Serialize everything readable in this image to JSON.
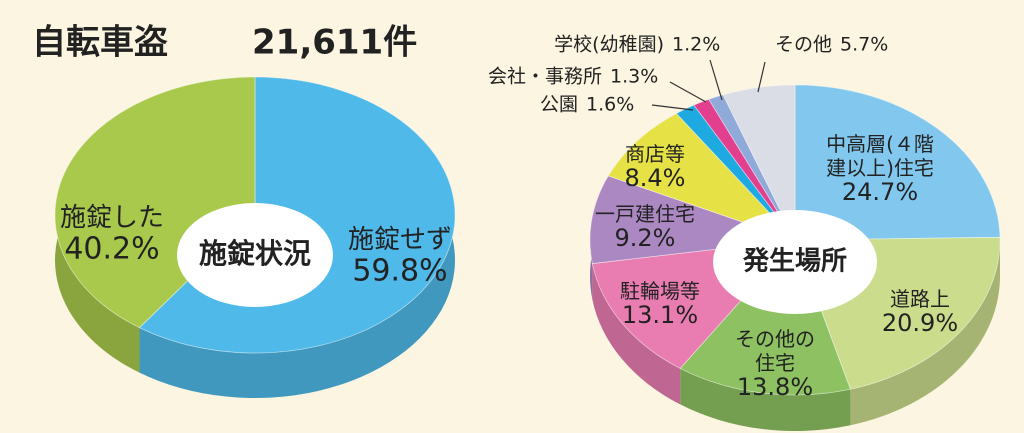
{
  "title": "自転車盗",
  "total": "21,611件",
  "chart_data": [
    {
      "type": "pie",
      "center_label": "施錠状況",
      "categories": [
        "施錠せず",
        "施錠した"
      ],
      "values": [
        59.8,
        40.2
      ],
      "value_labels": [
        "59.8%",
        "40.2%"
      ],
      "colors": [
        "#4fb9e9",
        "#a9c94c"
      ]
    },
    {
      "type": "pie",
      "center_label": "発生場所",
      "categories": [
        "中高層(４階\n建以上)住宅",
        "道路上",
        "その他の\n住宅",
        "駐輪場等",
        "一戸建住宅",
        "商店等",
        "公園",
        "会社・事務所",
        "学校(幼稚園)",
        "その他"
      ],
      "values": [
        24.7,
        20.9,
        13.8,
        13.1,
        9.2,
        8.4,
        1.6,
        1.3,
        1.2,
        5.7
      ],
      "value_labels": [
        "24.7%",
        "20.9%",
        "13.8%",
        "13.1%",
        "9.2%",
        "8.4%",
        "1.6%",
        "1.3%",
        "1.2%",
        "5.7%"
      ],
      "colors": [
        "#82c8ee",
        "#cbdc8c",
        "#8dc162",
        "#e97db2",
        "#ab88c2",
        "#e6e246",
        "#1ea9e1",
        "#e2408f",
        "#8fa9d9",
        "#dadde5"
      ]
    }
  ]
}
